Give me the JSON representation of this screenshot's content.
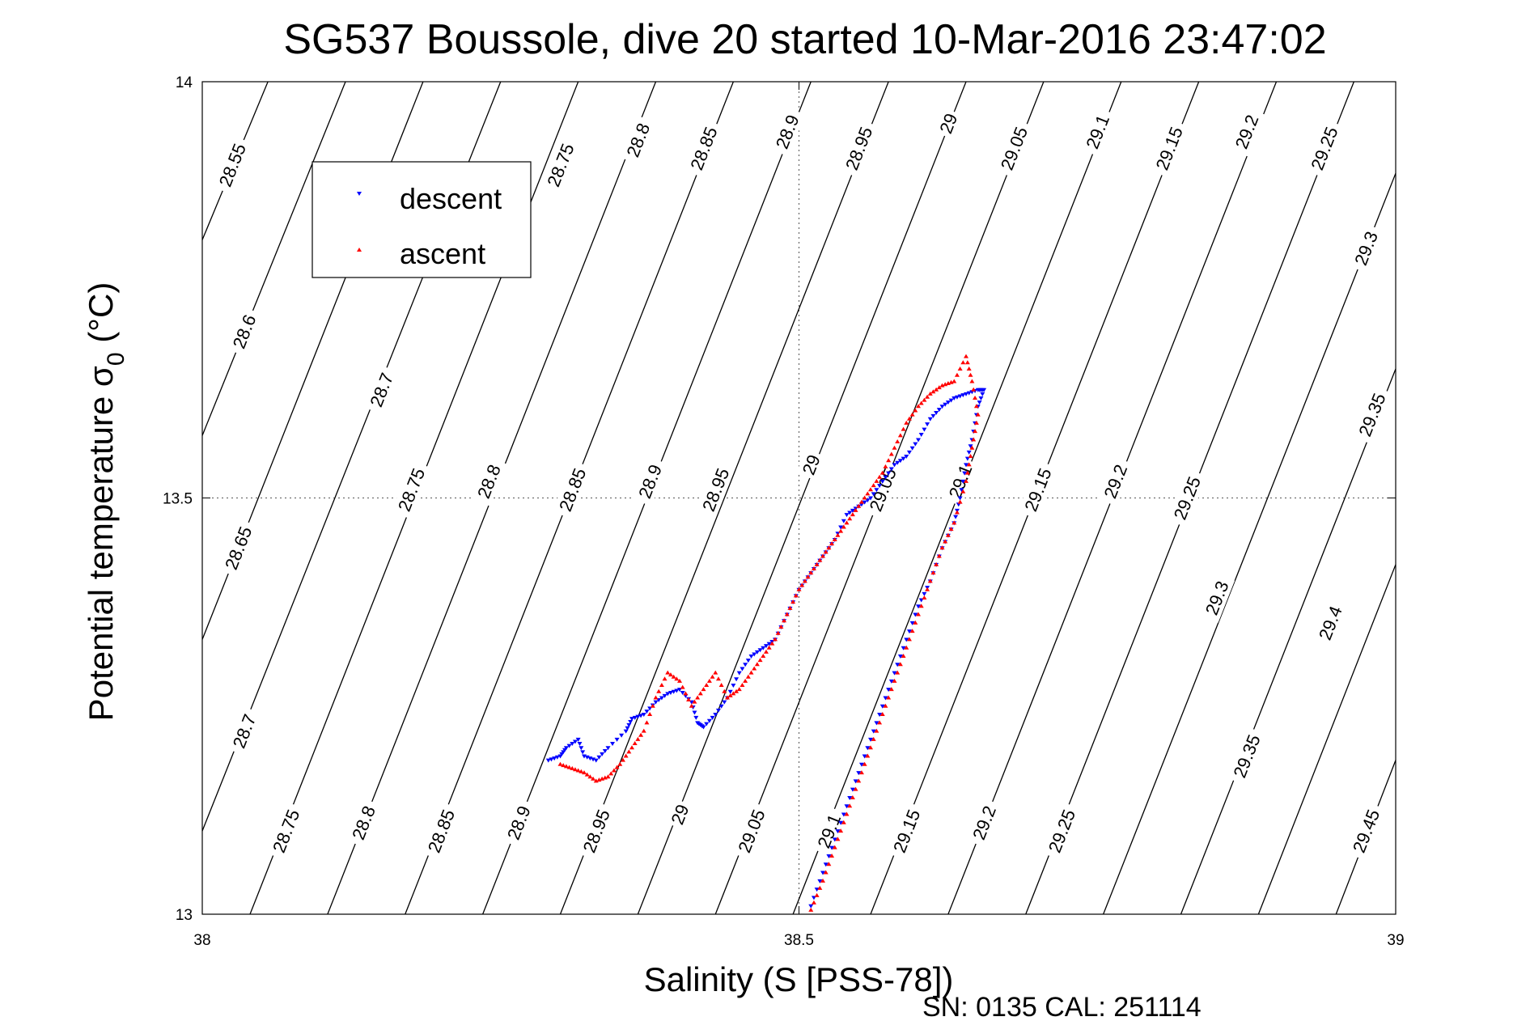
{
  "chart_data": {
    "type": "scatter",
    "title": "SG537 Boussole, dive 20 started 10-Mar-2016 23:47:02",
    "xlabel": "Salinity (S [PSS-78])",
    "ylabel": "Potential temperature σ",
    "ylabel_subscript": "0",
    "ylabel_unit": " (°C)",
    "xlim": [
      38,
      39
    ],
    "ylim": [
      13,
      14
    ],
    "x_ticks": [
      {
        "value": 38,
        "label": "38"
      },
      {
        "value": 38.5,
        "label": "38.5"
      },
      {
        "value": 39,
        "label": "39"
      }
    ],
    "y_ticks": [
      {
        "value": 13,
        "label": "13"
      },
      {
        "value": 13.5,
        "label": "13.5"
      },
      {
        "value": 14,
        "label": "14"
      }
    ],
    "grid": true,
    "legend_position": "top-left",
    "legend": [
      {
        "name": "descent",
        "color": "#0000ff",
        "marker": "triangle-down"
      },
      {
        "name": "ascent",
        "color": "#ff0000",
        "marker": "triangle-up"
      }
    ],
    "footnote": "SN: 0135  CAL: 251114",
    "contours": [
      {
        "v": 28.55,
        "label": "28.55",
        "x0": 38.0,
        "y0": 13.81,
        "x1": 38.055,
        "y1": 14.0,
        "lx": 38.025,
        "ly": 13.9
      },
      {
        "v": 28.6,
        "label": "28.6",
        "x0": 38.0,
        "y0": 13.575,
        "x1": 38.12,
        "y1": 14.0,
        "lx": 38.035,
        "ly": 13.7
      },
      {
        "v": 28.65,
        "label": "28.65",
        "x0": 38.0,
        "y0": 13.33,
        "x1": 38.185,
        "y1": 14.0,
        "lx": 38.03,
        "ly": 13.44
      },
      {
        "v": 28.7,
        "label": "28.7",
        "x0": 38.0,
        "y0": 13.1,
        "x1": 38.25,
        "y1": 14.0,
        "lx": 38.035,
        "ly": 13.22
      },
      {
        "v": 28.75,
        "label": "28.75",
        "x0": 38.04,
        "y0": 13.0,
        "x1": 38.315,
        "y1": 14.0,
        "lx": 38.07,
        "ly": 13.1
      },
      {
        "v": 28.8,
        "label": "28.8",
        "x0": 38.105,
        "y0": 13.0,
        "x1": 38.38,
        "y1": 14.0,
        "lx": 38.135,
        "ly": 13.11
      },
      {
        "v": 28.85,
        "label": "28.85",
        "x0": 38.17,
        "y0": 13.0,
        "x1": 38.445,
        "y1": 14.0,
        "lx": 38.2,
        "ly": 13.1
      },
      {
        "v": 28.9,
        "label": "28.9",
        "x0": 38.235,
        "y0": 13.0,
        "x1": 38.51,
        "y1": 14.0,
        "lx": 38.265,
        "ly": 13.11
      },
      {
        "v": 28.95,
        "label": "28.95",
        "x0": 38.3,
        "y0": 13.0,
        "x1": 38.575,
        "y1": 14.0,
        "lx": 38.33,
        "ly": 13.1
      },
      {
        "v": 29.0,
        "label": "29",
        "x0": 38.365,
        "y0": 13.0,
        "x1": 38.64,
        "y1": 14.0,
        "lx": 38.4,
        "ly": 13.12
      },
      {
        "v": 29.05,
        "label": "29.05",
        "x0": 38.43,
        "y0": 13.0,
        "x1": 38.705,
        "y1": 14.0,
        "lx": 38.46,
        "ly": 13.1
      },
      {
        "v": 29.1,
        "label": "29.1",
        "x0": 38.495,
        "y0": 13.0,
        "x1": 38.77,
        "y1": 14.0,
        "lx": 38.525,
        "ly": 13.1
      },
      {
        "v": 29.15,
        "label": "29.15",
        "x0": 38.56,
        "y0": 13.0,
        "x1": 38.835,
        "y1": 14.0,
        "lx": 38.59,
        "ly": 13.1
      },
      {
        "v": 29.2,
        "label": "29.2",
        "x0": 38.625,
        "y0": 13.0,
        "x1": 38.9,
        "y1": 14.0,
        "lx": 38.655,
        "ly": 13.11
      },
      {
        "v": 29.25,
        "label": "29.25",
        "x0": 38.69,
        "y0": 13.0,
        "x1": 38.965,
        "y1": 14.0,
        "lx": 38.72,
        "ly": 13.1
      },
      {
        "v": 29.3,
        "label": "29.3",
        "x0": 38.755,
        "y0": 13.0,
        "x1": 39.0,
        "y1": 13.89,
        "lx": 38.85,
        "ly": 13.38
      },
      {
        "v": 29.35,
        "label": "29.35",
        "x0": 38.82,
        "y0": 13.0,
        "x1": 39.0,
        "y1": 13.655,
        "lx": 38.875,
        "ly": 13.19
      },
      {
        "v": 29.4,
        "label": "29.4",
        "x0": 38.885,
        "y0": 13.0,
        "x1": 39.0,
        "y1": 13.42,
        "lx": 38.945,
        "ly": 13.35
      },
      {
        "v": 29.45,
        "label": "29.45",
        "x0": 38.95,
        "y0": 13.0,
        "x1": 39.0,
        "y1": 13.185,
        "lx": 38.975,
        "ly": 13.1
      }
    ],
    "extra_contour_labels": [
      {
        "label": "28.7",
        "lx": 38.15,
        "ly": 13.63
      },
      {
        "label": "28.75",
        "lx": 38.175,
        "ly": 13.51
      },
      {
        "label": "28.75",
        "lx": 38.3,
        "ly": 13.9
      },
      {
        "label": "28.8",
        "lx": 38.24,
        "ly": 13.52
      },
      {
        "label": "28.8",
        "lx": 38.365,
        "ly": 13.93
      },
      {
        "label": "28.85",
        "lx": 38.31,
        "ly": 13.51
      },
      {
        "label": "28.85",
        "lx": 38.42,
        "ly": 13.92
      },
      {
        "label": "28.9",
        "lx": 38.375,
        "ly": 13.52
      },
      {
        "label": "28.9",
        "lx": 38.49,
        "ly": 13.94
      },
      {
        "label": "28.95",
        "lx": 38.43,
        "ly": 13.51
      },
      {
        "label": "28.95",
        "lx": 38.55,
        "ly": 13.92
      },
      {
        "label": "29",
        "lx": 38.51,
        "ly": 13.54
      },
      {
        "label": "29",
        "lx": 38.625,
        "ly": 13.95
      },
      {
        "label": "29.05",
        "lx": 38.57,
        "ly": 13.51
      },
      {
        "label": "29.05",
        "lx": 38.68,
        "ly": 13.92
      },
      {
        "label": "29.1",
        "lx": 38.635,
        "ly": 13.52
      },
      {
        "label": "29.1",
        "lx": 38.75,
        "ly": 13.94
      },
      {
        "label": "29.15",
        "lx": 38.7,
        "ly": 13.51
      },
      {
        "label": "29.15",
        "lx": 38.81,
        "ly": 13.92
      },
      {
        "label": "29.2",
        "lx": 38.765,
        "ly": 13.52
      },
      {
        "label": "29.2",
        "lx": 38.875,
        "ly": 13.94
      },
      {
        "label": "29.25",
        "lx": 38.825,
        "ly": 13.5
      },
      {
        "label": "29.25",
        "lx": 38.94,
        "ly": 13.92
      },
      {
        "label": "29.3",
        "lx": 38.975,
        "ly": 13.8
      },
      {
        "label": "29.35",
        "lx": 38.98,
        "ly": 13.6
      }
    ],
    "series": [
      {
        "name": "descent",
        "color": "#0000ff",
        "marker": "triangle-down",
        "points": [
          [
            38.29,
            13.185
          ],
          [
            38.3,
            13.19
          ],
          [
            38.305,
            13.2
          ],
          [
            38.315,
            13.21
          ],
          [
            38.32,
            13.19
          ],
          [
            38.33,
            13.185
          ],
          [
            38.34,
            13.2
          ],
          [
            38.355,
            13.22
          ],
          [
            38.36,
            13.235
          ],
          [
            38.37,
            13.24
          ],
          [
            38.38,
            13.255
          ],
          [
            38.39,
            13.265
          ],
          [
            38.4,
            13.27
          ],
          [
            38.41,
            13.255
          ],
          [
            38.415,
            13.23
          ],
          [
            38.42,
            13.225
          ],
          [
            38.43,
            13.24
          ],
          [
            38.44,
            13.26
          ],
          [
            38.45,
            13.29
          ],
          [
            38.46,
            13.31
          ],
          [
            38.47,
            13.32
          ],
          [
            38.48,
            13.33
          ],
          [
            38.49,
            13.36
          ],
          [
            38.5,
            13.39
          ],
          [
            38.51,
            13.41
          ],
          [
            38.52,
            13.43
          ],
          [
            38.53,
            13.45
          ],
          [
            38.54,
            13.48
          ],
          [
            38.55,
            13.49
          ],
          [
            38.56,
            13.5
          ],
          [
            38.57,
            13.52
          ],
          [
            38.58,
            13.54
          ],
          [
            38.59,
            13.55
          ],
          [
            38.6,
            13.57
          ],
          [
            38.61,
            13.595
          ],
          [
            38.62,
            13.61
          ],
          [
            38.63,
            13.62
          ],
          [
            38.64,
            13.625
          ],
          [
            38.65,
            13.63
          ],
          [
            38.655,
            13.63
          ],
          [
            38.65,
            13.61
          ],
          [
            38.645,
            13.57
          ],
          [
            38.64,
            13.54
          ],
          [
            38.635,
            13.5
          ],
          [
            38.63,
            13.47
          ],
          [
            38.62,
            13.44
          ],
          [
            38.61,
            13.4
          ],
          [
            38.6,
            13.37
          ],
          [
            38.59,
            13.33
          ],
          [
            38.58,
            13.29
          ],
          [
            38.57,
            13.25
          ],
          [
            38.56,
            13.21
          ],
          [
            38.55,
            13.17
          ],
          [
            38.54,
            13.13
          ],
          [
            38.53,
            13.09
          ],
          [
            38.52,
            13.05
          ],
          [
            38.51,
            13.01
          ]
        ]
      },
      {
        "name": "ascent",
        "color": "#ff0000",
        "marker": "triangle-up",
        "points": [
          [
            38.51,
            13.005
          ],
          [
            38.52,
            13.04
          ],
          [
            38.53,
            13.08
          ],
          [
            38.54,
            13.12
          ],
          [
            38.55,
            13.16
          ],
          [
            38.56,
            13.2
          ],
          [
            38.57,
            13.24
          ],
          [
            38.58,
            13.28
          ],
          [
            38.59,
            13.32
          ],
          [
            38.6,
            13.36
          ],
          [
            38.61,
            13.4
          ],
          [
            38.62,
            13.44
          ],
          [
            38.63,
            13.47
          ],
          [
            38.64,
            13.52
          ],
          [
            38.645,
            13.56
          ],
          [
            38.65,
            13.6
          ],
          [
            38.645,
            13.64
          ],
          [
            38.64,
            13.67
          ],
          [
            38.63,
            13.64
          ],
          [
            38.62,
            13.635
          ],
          [
            38.61,
            13.625
          ],
          [
            38.6,
            13.61
          ],
          [
            38.59,
            13.59
          ],
          [
            38.58,
            13.56
          ],
          [
            38.57,
            13.53
          ],
          [
            38.56,
            13.51
          ],
          [
            38.55,
            13.49
          ],
          [
            38.54,
            13.47
          ],
          [
            38.53,
            13.45
          ],
          [
            38.52,
            13.43
          ],
          [
            38.51,
            13.41
          ],
          [
            38.5,
            13.39
          ],
          [
            38.49,
            13.36
          ],
          [
            38.48,
            13.33
          ],
          [
            38.47,
            13.31
          ],
          [
            38.46,
            13.29
          ],
          [
            38.45,
            13.27
          ],
          [
            38.44,
            13.26
          ],
          [
            38.43,
            13.29
          ],
          [
            38.42,
            13.27
          ],
          [
            38.41,
            13.25
          ],
          [
            38.4,
            13.28
          ],
          [
            38.39,
            13.29
          ],
          [
            38.38,
            13.26
          ],
          [
            38.37,
            13.22
          ],
          [
            38.36,
            13.2
          ],
          [
            38.35,
            13.18
          ],
          [
            38.34,
            13.165
          ],
          [
            38.33,
            13.16
          ],
          [
            38.32,
            13.17
          ],
          [
            38.31,
            13.175
          ],
          [
            38.3,
            13.18
          ]
        ]
      }
    ]
  }
}
